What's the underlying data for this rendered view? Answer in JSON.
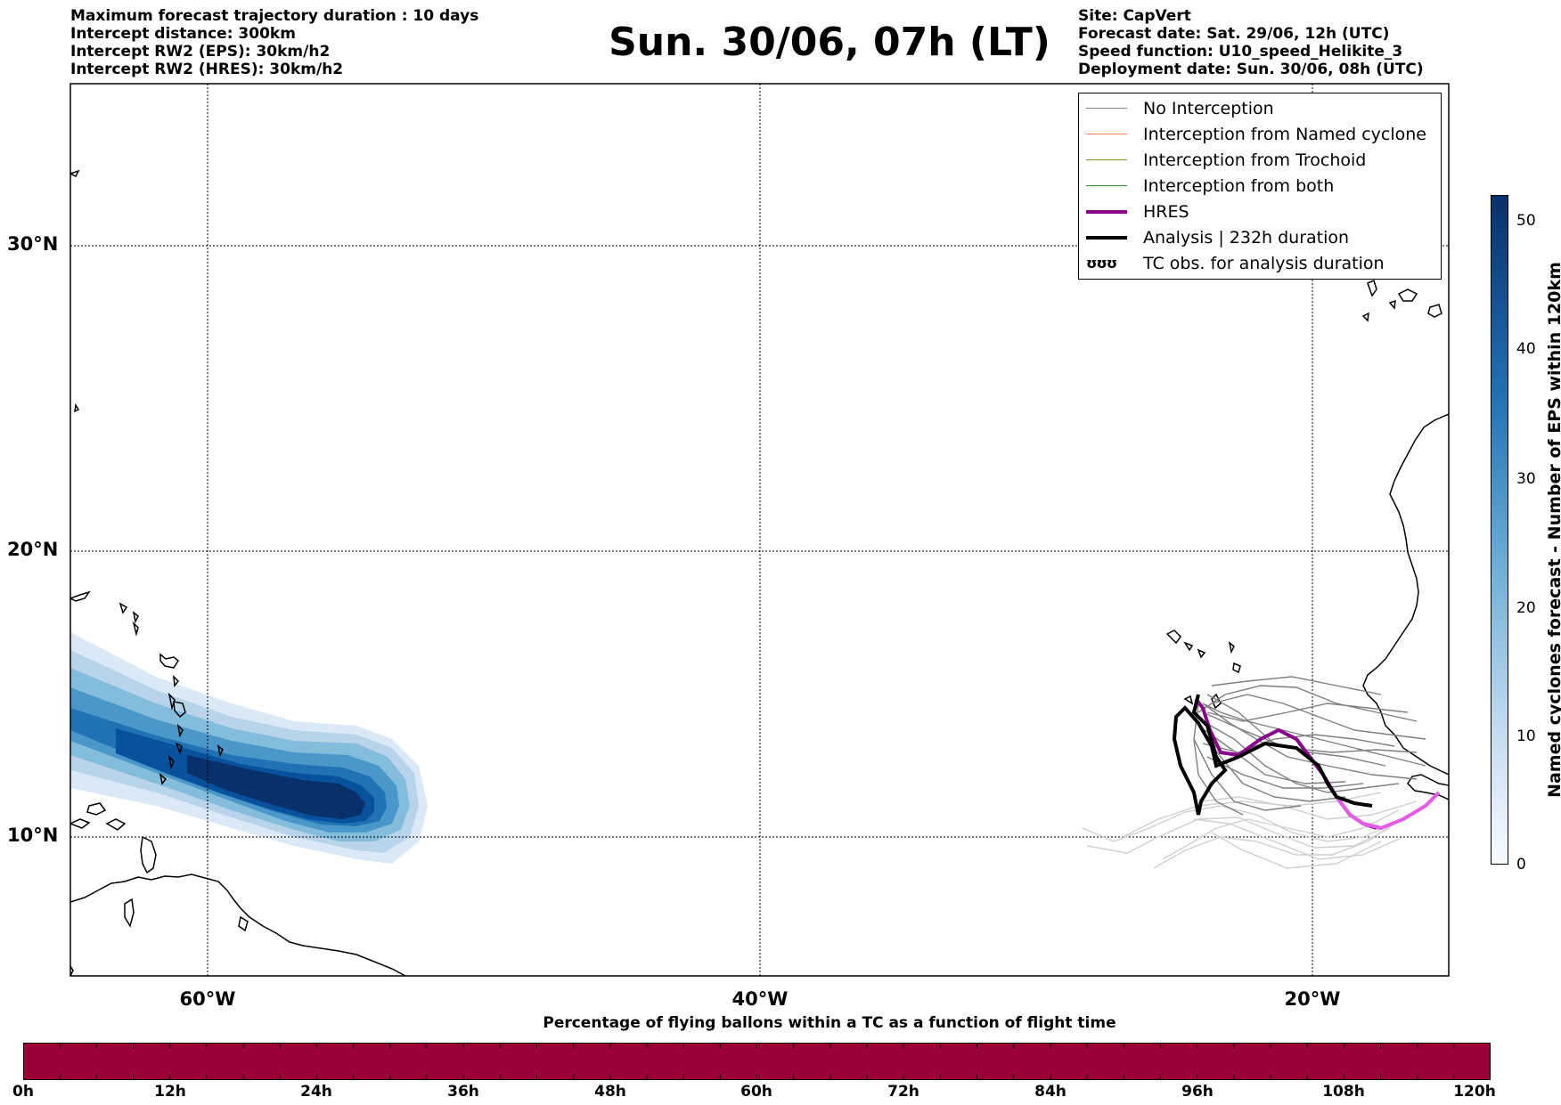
{
  "header": {
    "left_lines": [
      "Maximum forecast trajectory duration : 10 days",
      "Intercept distance: 300km",
      "Intercept RW2 (EPS):  30km/h2",
      "Intercept RW2 (HRES): 30km/h2"
    ],
    "title": "Sun. 30/06, 07h (LT)",
    "right_lines": [
      "Site: CapVert",
      "Forecast date: Sat. 29/06, 12h (UTC)",
      "Speed function: U10_speed_Helikite_3",
      "Deployment date: Sun. 30/06, 08h (UTC)"
    ]
  },
  "map": {
    "lat_labels": [
      "30°N",
      "20°N",
      "10°N"
    ],
    "lon_labels": [
      "60°W",
      "40°W",
      "20°W"
    ]
  },
  "legend": {
    "items": [
      {
        "label": "No Interception",
        "color": "#808080",
        "width": 1.5
      },
      {
        "label": "Interception from Named cyclone",
        "color": "#ff7f50",
        "width": 1.5
      },
      {
        "label": "Interception from Trochoid",
        "color": "#8b8b2a",
        "width": 1.5
      },
      {
        "label": "Interception from both",
        "color": "#2ca02c",
        "width": 1.5
      },
      {
        "label": "HRES",
        "color": "#8b008b",
        "width": 4
      },
      {
        "label": "Analysis | 232h duration",
        "color": "#000000",
        "width": 4
      }
    ],
    "tc_obs_label": "TC obs. for analysis duration",
    "tc_obs_symbol": "ʊʊʊ"
  },
  "colorbar": {
    "label": "Named cyclones forecast - Number of EPS within 120km",
    "ticks": [
      "0",
      "10",
      "20",
      "30",
      "40",
      "50"
    ],
    "colors": [
      "#f7fbff",
      "#08306b"
    ]
  },
  "flight_bar": {
    "label": "Percentage of flying ballons within a TC as a function of flight time",
    "ticks": [
      "0h",
      "12h",
      "24h",
      "36h",
      "48h",
      "60h",
      "72h",
      "84h",
      "96h",
      "108h",
      "120h"
    ],
    "color": "#9c0038"
  }
}
